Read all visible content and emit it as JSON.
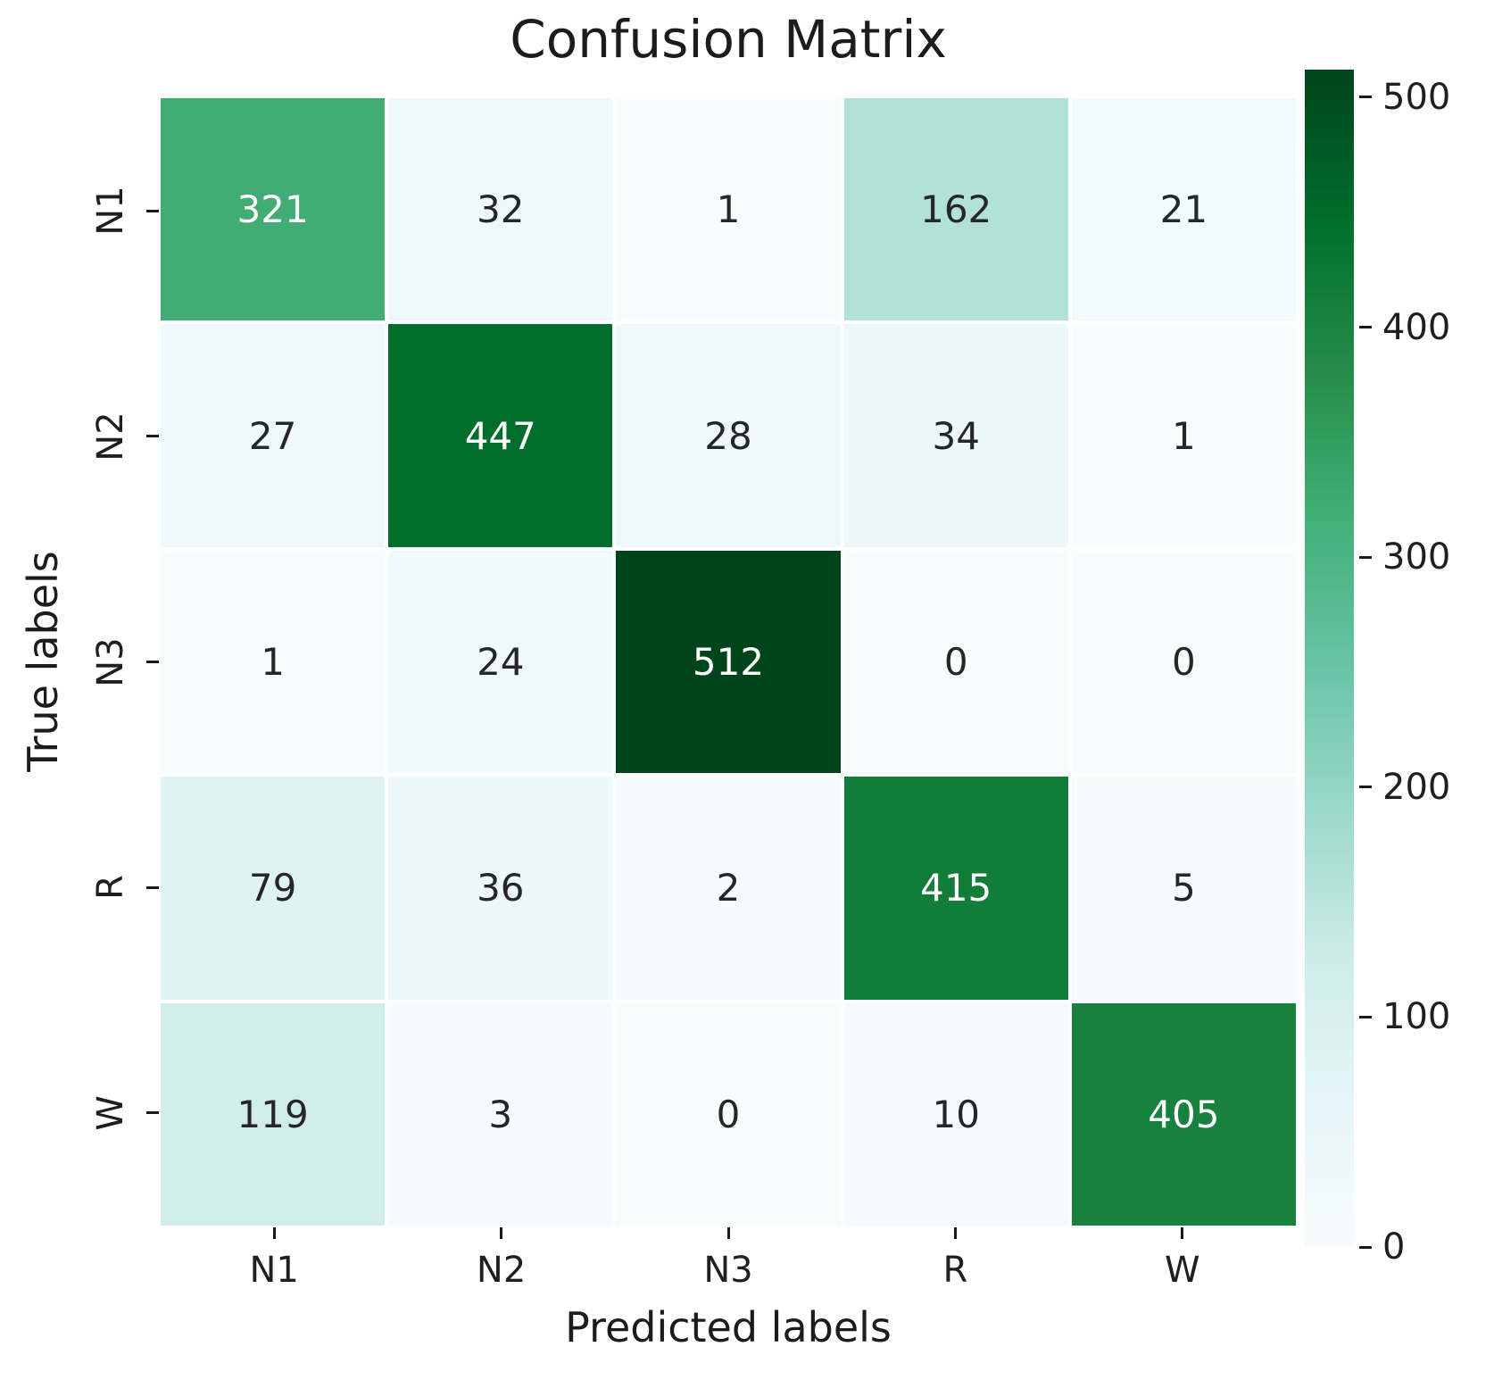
{
  "title": "Confusion Matrix",
  "chart_data": {
    "type": "heatmap",
    "title": "Confusion Matrix",
    "xlabel": "Predicted labels",
    "ylabel": "True labels",
    "x_tick_labels": [
      "N1",
      "N2",
      "N3",
      "R",
      "W"
    ],
    "y_tick_labels": [
      "N1",
      "N2",
      "N3",
      "R",
      "W"
    ],
    "matrix": [
      [
        321,
        32,
        1,
        162,
        21
      ],
      [
        27,
        447,
        28,
        34,
        1
      ],
      [
        1,
        24,
        512,
        0,
        0
      ],
      [
        79,
        36,
        2,
        415,
        5
      ],
      [
        119,
        3,
        0,
        10,
        405
      ]
    ],
    "vmin": 0,
    "vmax": 512,
    "colorbar_ticks": [
      500,
      400,
      300,
      200,
      100,
      0
    ],
    "colorbar_position": "right",
    "grid": false,
    "colormap_name": "BuGn",
    "colormap_stops": [
      "#f7fcfd",
      "#e5f5f9",
      "#ccece6",
      "#99d8c9",
      "#66c2a4",
      "#41ae76",
      "#238b45",
      "#006d2c",
      "#00441b"
    ]
  },
  "colors": {
    "background": "#ffffff",
    "annotation_dark": "#262626",
    "annotation_light": "#ffffff",
    "tick_color": "#1f1f1f",
    "grid_line": "#ffffff"
  }
}
